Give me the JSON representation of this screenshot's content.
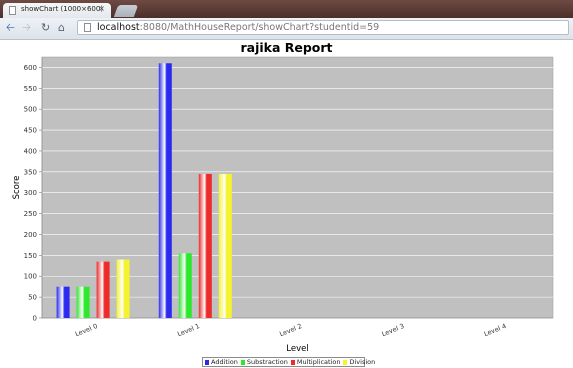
{
  "browser": {
    "tab_title": "showChart (1000×600)",
    "tab_close": "×",
    "url_host": "localhost",
    "url_rest": ":8080/MathHouseReport/showChart?studentid=59"
  },
  "chart_data": {
    "type": "bar",
    "title": "rajika Report",
    "xlabel": "Level",
    "ylabel": "Score",
    "categories": [
      "Level 0",
      "Level 1",
      "Level 2",
      "Level 3",
      "Level 4"
    ],
    "series": [
      {
        "name": "Addition",
        "values": [
          75,
          610,
          0,
          0,
          0
        ],
        "color": "#2b2bf0"
      },
      {
        "name": "Substraction",
        "values": [
          75,
          155,
          0,
          0,
          0
        ],
        "color": "#2ee82e"
      },
      {
        "name": "Multiplication",
        "values": [
          135,
          345,
          0,
          0,
          0
        ],
        "color": "#ee2b2b"
      },
      {
        "name": "Division",
        "values": [
          140,
          345,
          0,
          0,
          0
        ],
        "color": "#f5f22e"
      }
    ],
    "ylim": [
      0,
      625
    ],
    "yticks": [
      "0",
      "50",
      "100",
      "150",
      "200",
      "250",
      "300",
      "350",
      "400",
      "450",
      "500",
      "550",
      "600"
    ],
    "grid": true,
    "legend_position": "bottom",
    "plot_background": "#c0c0c0"
  }
}
